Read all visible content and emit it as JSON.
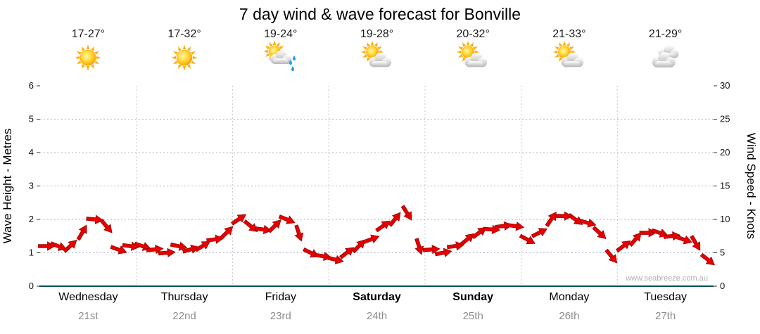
{
  "title": "7 day wind & wave forecast for Bonville",
  "forecast_days": [
    {
      "day": "Wednesday",
      "date": "21st",
      "temp": "17-27°",
      "icon": "sun",
      "bold": false
    },
    {
      "day": "Thursday",
      "date": "22nd",
      "temp": "17-32°",
      "icon": "sun",
      "bold": false
    },
    {
      "day": "Friday",
      "date": "23rd",
      "temp": "19-24°",
      "icon": "sun-cloud-rain",
      "bold": false
    },
    {
      "day": "Saturday",
      "date": "24th",
      "temp": "19-28°",
      "icon": "sun-cloud",
      "bold": true
    },
    {
      "day": "Sunday",
      "date": "25th",
      "temp": "20-32°",
      "icon": "sun-cloud",
      "bold": true
    },
    {
      "day": "Monday",
      "date": "26th",
      "temp": "21-33°",
      "icon": "sun-cloud",
      "bold": false
    },
    {
      "day": "Tuesday",
      "date": "27th",
      "temp": "21-29°",
      "icon": "cloud",
      "bold": false
    }
  ],
  "chart_data": {
    "type": "line",
    "title": "7 day wind & wave forecast for Bonville",
    "left_axis": {
      "label": "Wave Height - Metres",
      "range": [
        0,
        6
      ],
      "ticks": [
        0,
        1,
        2,
        3,
        4,
        5,
        6
      ]
    },
    "right_axis": {
      "label": "Wind Speed - Knots",
      "range": [
        0,
        30
      ],
      "ticks": [
        0,
        5,
        10,
        15,
        20,
        25,
        30
      ]
    },
    "categories": [
      "Wednesday 21st",
      "Thursday 22nd",
      "Friday 23rd",
      "Saturday 24th",
      "Sunday 25th",
      "Monday 26th",
      "Tuesday 27th"
    ],
    "points_per_day": 8,
    "grid": true,
    "legend": false,
    "watermark": "www.seabreeze.com.au",
    "series": [
      {
        "name": "Wind Speed",
        "unit": "knots",
        "color": "#e60000",
        "marker": "arrow",
        "values": [
          6,
          6,
          6,
          8,
          10,
          9,
          5.5,
          6,
          6,
          5.5,
          5,
          6,
          5.5,
          6,
          7,
          8,
          10,
          9,
          8.5,
          9,
          10,
          8,
          5,
          4.5,
          4,
          5,
          6,
          7,
          9,
          10,
          11,
          6,
          5.5,
          5,
          6,
          7,
          8,
          8.5,
          9,
          9,
          7,
          8,
          10,
          10.5,
          10,
          9.5,
          8,
          4.5,
          6,
          7,
          8,
          8,
          7.5,
          7,
          6.5,
          4
        ]
      }
    ]
  },
  "colors": {
    "arrow": "#e60000",
    "arrow_outline": "#990000",
    "axis": "#0a5050",
    "grid": "#a9b4cc",
    "date_text": "#8c8c8c",
    "rain_drop": "#2e9fe6"
  }
}
